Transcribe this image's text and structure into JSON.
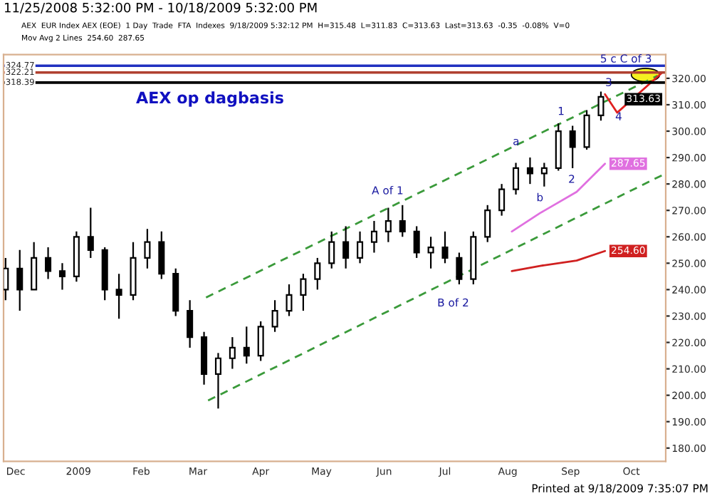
{
  "chart_data": {
    "type": "candlestick",
    "title": "AEX op dagbasis",
    "annotations": [
      "11/25/2008 5:32:00 PM - 10/18/2009 5:32:00 PM",
      "AEX  EUR Index AEX (EOE)  1 Day  Trade  FTA  Indexes  9/18/2009 5:32:12 PM  H=315.48  L=311.83  C=313.63  Last=313.63  -0.35  -0.08%  V=0",
      "Mov Avg 2 Lines  254.60  287.65",
      "Printed at 9/18/2009 7:35:07 PM",
      "313.63",
      "A of 1",
      "B of 2",
      "a",
      "b",
      "1",
      "2",
      "3",
      "4",
      "5 c C of 3"
    ],
    "x": [
      "2008-11-26",
      "2008-12-03",
      "2008-12-10",
      "2008-12-17",
      "2008-12-24",
      "2008-12-31",
      "2009-01-07",
      "2009-01-14",
      "2009-01-21",
      "2009-01-28",
      "2009-02-04",
      "2009-02-11",
      "2009-02-18",
      "2009-02-25",
      "2009-03-04",
      "2009-03-11",
      "2009-03-18",
      "2009-03-25",
      "2009-04-01",
      "2009-04-08",
      "2009-04-15",
      "2009-04-22",
      "2009-04-29",
      "2009-05-06",
      "2009-05-13",
      "2009-05-20",
      "2009-05-27",
      "2009-06-03",
      "2009-06-10",
      "2009-06-17",
      "2009-06-24",
      "2009-07-01",
      "2009-07-08",
      "2009-07-15",
      "2009-07-22",
      "2009-07-29",
      "2009-08-05",
      "2009-08-12",
      "2009-08-19",
      "2009-08-26",
      "2009-09-02",
      "2009-09-09",
      "2009-09-16"
    ],
    "ohlc": [
      [
        240,
        252,
        236,
        248
      ],
      [
        248,
        255,
        232,
        240
      ],
      [
        240,
        258,
        240,
        252
      ],
      [
        252,
        256,
        244,
        247
      ],
      [
        247,
        250,
        240,
        245
      ],
      [
        245,
        262,
        243,
        260
      ],
      [
        260,
        271,
        252,
        255
      ],
      [
        255,
        256,
        236,
        240
      ],
      [
        240,
        246,
        229,
        238
      ],
      [
        238,
        258,
        236,
        252
      ],
      [
        252,
        263,
        248,
        258
      ],
      [
        258,
        262,
        244,
        246
      ],
      [
        246,
        248,
        230,
        232
      ],
      [
        232,
        236,
        218,
        222
      ],
      [
        222,
        224,
        204,
        208
      ],
      [
        208,
        216,
        195,
        214
      ],
      [
        214,
        222,
        210,
        218
      ],
      [
        218,
        226,
        212,
        215
      ],
      [
        215,
        228,
        213,
        226
      ],
      [
        226,
        236,
        224,
        232
      ],
      [
        232,
        242,
        230,
        238
      ],
      [
        238,
        246,
        232,
        244
      ],
      [
        244,
        252,
        240,
        250
      ],
      [
        250,
        262,
        248,
        258
      ],
      [
        258,
        264,
        248,
        252
      ],
      [
        252,
        262,
        250,
        258
      ],
      [
        258,
        266,
        254,
        262
      ],
      [
        262,
        271,
        258,
        266
      ],
      [
        266,
        272,
        260,
        262
      ],
      [
        262,
        264,
        252,
        254
      ],
      [
        254,
        260,
        248,
        256
      ],
      [
        256,
        262,
        250,
        252
      ],
      [
        252,
        254,
        242,
        244
      ],
      [
        244,
        262,
        242,
        260
      ],
      [
        260,
        272,
        258,
        270
      ],
      [
        270,
        280,
        268,
        278
      ],
      [
        278,
        288,
        276,
        286
      ],
      [
        286,
        290,
        280,
        284
      ],
      [
        284,
        288,
        279,
        286
      ],
      [
        286,
        303,
        285,
        300
      ],
      [
        300,
        302,
        286,
        294
      ],
      [
        294,
        308,
        293,
        306
      ],
      [
        306,
        315,
        304,
        313
      ]
    ],
    "color": "#000000",
    "series": [
      {
        "type": "line",
        "color": "#e070e0",
        "x": [
          "2009-08-03",
          "2009-08-17",
          "2009-09-04",
          "2009-09-18"
        ],
        "values": [
          262,
          269,
          277,
          287.65
        ],
        "value_labels": [
          null,
          null,
          null,
          "287.65"
        ]
      },
      {
        "type": "line",
        "color": "#d02020",
        "x": [
          "2009-08-03",
          "2009-08-17",
          "2009-09-04",
          "2009-09-18"
        ],
        "values": [
          247,
          249,
          251,
          254.6
        ],
        "value_labels": [
          null,
          null,
          null,
          "254.60"
        ]
      },
      {
        "type": "line",
        "color": "#3a9a3a",
        "line_style": "dashed",
        "x": [
          "2009-03-05",
          "2009-10-14"
        ],
        "values": [
          237,
          321
        ]
      },
      {
        "type": "line",
        "color": "#3a9a3a",
        "line_style": "dashed",
        "x": [
          "2009-03-06",
          "2009-10-18"
        ],
        "values": [
          198,
          284
        ]
      },
      {
        "type": "line",
        "color": "#e02020",
        "x": [
          "2009-09-18",
          "2009-09-24",
          "2009-10-16"
        ],
        "values": [
          314,
          307,
          322
        ]
      }
    ],
    "ref_lines": [
      {
        "axis": "y",
        "value": 324.77,
        "label": "324.77",
        "color": "#2030c0"
      },
      {
        "axis": "y",
        "value": 322.21,
        "label": "322.21",
        "color": "#b04030"
      },
      {
        "axis": "y",
        "value": 318.39,
        "label": "318.39",
        "color": "#000000"
      }
    ],
    "xlim": [
      "2008-11-25",
      "2009-10-18"
    ],
    "xticks": [
      {
        "value": "2008-12-01",
        "label": "Dec"
      },
      {
        "value": "2009-01-01",
        "label": "2009"
      },
      {
        "value": "2009-02-01",
        "label": "Feb"
      },
      {
        "value": "2009-03-01",
        "label": "Mar"
      },
      {
        "value": "2009-04-01",
        "label": "Apr"
      },
      {
        "value": "2009-05-01",
        "label": "May"
      },
      {
        "value": "2009-06-01",
        "label": "Jun"
      },
      {
        "value": "2009-07-01",
        "label": "Jul"
      },
      {
        "value": "2009-08-01",
        "label": "Aug"
      },
      {
        "value": "2009-09-01",
        "label": "Sep"
      },
      {
        "value": "2009-10-01",
        "label": "Oct"
      }
    ],
    "ylim": [
      175,
      329
    ],
    "yticks": [
      {
        "value": 180,
        "label": "180.00"
      },
      {
        "value": 190,
        "label": "190.00"
      },
      {
        "value": 200,
        "label": "200.00"
      },
      {
        "value": 210,
        "label": "210.00"
      },
      {
        "value": 220,
        "label": "220.00"
      },
      {
        "value": 230,
        "label": "230.00"
      },
      {
        "value": 240,
        "label": "240.00"
      },
      {
        "value": 250,
        "label": "250.00"
      },
      {
        "value": 260,
        "label": "260.00"
      },
      {
        "value": 270,
        "label": "270.00"
      },
      {
        "value": 280,
        "label": "280.00"
      },
      {
        "value": 290,
        "label": "290.00"
      },
      {
        "value": 300,
        "label": "300.00"
      },
      {
        "value": 310,
        "label": "310.00"
      },
      {
        "value": 320,
        "label": "320.00"
      }
    ],
    "grid": false,
    "legend": false
  }
}
